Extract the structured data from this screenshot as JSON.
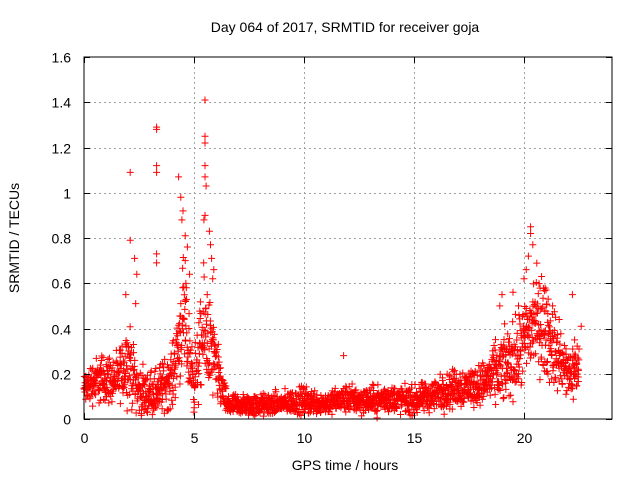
{
  "chart_data": {
    "type": "scatter",
    "title": "Day 064 of 2017, SRMTID for receiver goja",
    "xlabel": "GPS time / hours",
    "ylabel": "SRMTID / TECUs",
    "xlim": [
      0,
      24
    ],
    "ylim": [
      0,
      1.6
    ],
    "xticks": [
      0,
      5,
      10,
      15,
      20
    ],
    "xtick_labels": [
      "0",
      "5",
      "10",
      "15",
      "20"
    ],
    "yticks": [
      0,
      0.2,
      0.4,
      0.6,
      0.8,
      1.0,
      1.2,
      1.4,
      1.6
    ],
    "ytick_labels": [
      "0",
      "0.2",
      "0.4",
      "0.6",
      "0.8",
      "1",
      "1.2",
      "1.4",
      "1.6"
    ],
    "grid": true,
    "marker": "+",
    "series_color": "#ff0000",
    "series": [
      {
        "name": "SRMTID",
        "envelope": [
          {
            "x": 0.0,
            "mean": 0.13,
            "spread": 0.06
          },
          {
            "x": 0.5,
            "mean": 0.17,
            "spread": 0.08
          },
          {
            "x": 1.0,
            "mean": 0.18,
            "spread": 0.09
          },
          {
            "x": 1.5,
            "mean": 0.17,
            "spread": 0.08
          },
          {
            "x": 2.0,
            "mean": 0.26,
            "spread": 0.14
          },
          {
            "x": 2.5,
            "mean": 0.12,
            "spread": 0.08
          },
          {
            "x": 3.0,
            "mean": 0.11,
            "spread": 0.08
          },
          {
            "x": 3.5,
            "mean": 0.14,
            "spread": 0.09
          },
          {
            "x": 4.0,
            "mean": 0.18,
            "spread": 0.1
          },
          {
            "x": 4.5,
            "mean": 0.45,
            "spread": 0.2
          },
          {
            "x": 5.0,
            "mean": 0.16,
            "spread": 0.1
          },
          {
            "x": 5.5,
            "mean": 0.4,
            "spread": 0.22
          },
          {
            "x": 6.0,
            "mean": 0.22,
            "spread": 0.12
          },
          {
            "x": 6.5,
            "mean": 0.06,
            "spread": 0.04
          },
          {
            "x": 7.0,
            "mean": 0.06,
            "spread": 0.04
          },
          {
            "x": 8.0,
            "mean": 0.06,
            "spread": 0.04
          },
          {
            "x": 9.0,
            "mean": 0.07,
            "spread": 0.04
          },
          {
            "x": 10.0,
            "mean": 0.08,
            "spread": 0.05
          },
          {
            "x": 11.0,
            "mean": 0.07,
            "spread": 0.04
          },
          {
            "x": 12.0,
            "mean": 0.09,
            "spread": 0.05
          },
          {
            "x": 13.0,
            "mean": 0.08,
            "spread": 0.05
          },
          {
            "x": 14.0,
            "mean": 0.09,
            "spread": 0.05
          },
          {
            "x": 15.0,
            "mean": 0.08,
            "spread": 0.05
          },
          {
            "x": 16.0,
            "mean": 0.11,
            "spread": 0.06
          },
          {
            "x": 17.0,
            "mean": 0.14,
            "spread": 0.07
          },
          {
            "x": 18.0,
            "mean": 0.15,
            "spread": 0.07
          },
          {
            "x": 19.0,
            "mean": 0.22,
            "spread": 0.12
          },
          {
            "x": 19.5,
            "mean": 0.26,
            "spread": 0.13
          },
          {
            "x": 20.0,
            "mean": 0.33,
            "spread": 0.15
          },
          {
            "x": 20.5,
            "mean": 0.45,
            "spread": 0.18
          },
          {
            "x": 21.0,
            "mean": 0.38,
            "spread": 0.16
          },
          {
            "x": 21.5,
            "mean": 0.28,
            "spread": 0.12
          },
          {
            "x": 22.0,
            "mean": 0.2,
            "spread": 0.1
          },
          {
            "x": 22.5,
            "mean": 0.23,
            "spread": 0.1
          }
        ],
        "peaks": [
          {
            "x": 2.1,
            "y": 1.09
          },
          {
            "x": 2.1,
            "y": 0.79
          },
          {
            "x": 2.3,
            "y": 0.71
          },
          {
            "x": 2.4,
            "y": 0.64
          },
          {
            "x": 2.35,
            "y": 0.51
          },
          {
            "x": 1.9,
            "y": 0.55
          },
          {
            "x": 3.3,
            "y": 1.29
          },
          {
            "x": 3.3,
            "y": 1.28
          },
          {
            "x": 3.3,
            "y": 1.12
          },
          {
            "x": 3.3,
            "y": 1.09
          },
          {
            "x": 3.3,
            "y": 0.73
          },
          {
            "x": 3.3,
            "y": 0.69
          },
          {
            "x": 4.3,
            "y": 1.07
          },
          {
            "x": 4.4,
            "y": 0.98
          },
          {
            "x": 4.5,
            "y": 0.92
          },
          {
            "x": 4.45,
            "y": 0.88
          },
          {
            "x": 4.6,
            "y": 0.81
          },
          {
            "x": 4.7,
            "y": 0.76
          },
          {
            "x": 4.6,
            "y": 0.7
          },
          {
            "x": 4.8,
            "y": 0.64
          },
          {
            "x": 4.65,
            "y": 0.58
          },
          {
            "x": 5.5,
            "y": 1.41
          },
          {
            "x": 5.5,
            "y": 1.25
          },
          {
            "x": 5.5,
            "y": 1.22
          },
          {
            "x": 5.5,
            "y": 1.12
          },
          {
            "x": 5.5,
            "y": 1.07
          },
          {
            "x": 5.55,
            "y": 1.03
          },
          {
            "x": 5.5,
            "y": 0.9
          },
          {
            "x": 5.45,
            "y": 0.88
          },
          {
            "x": 5.7,
            "y": 0.83
          },
          {
            "x": 5.75,
            "y": 0.77
          },
          {
            "x": 5.8,
            "y": 0.71
          },
          {
            "x": 5.9,
            "y": 0.66
          },
          {
            "x": 5.85,
            "y": 0.62
          },
          {
            "x": 5.6,
            "y": 0.55
          },
          {
            "x": 11.8,
            "y": 0.28
          },
          {
            "x": 20.3,
            "y": 0.85
          },
          {
            "x": 20.3,
            "y": 0.82
          },
          {
            "x": 20.4,
            "y": 0.77
          },
          {
            "x": 20.2,
            "y": 0.72
          },
          {
            "x": 20.1,
            "y": 0.66
          },
          {
            "x": 20.0,
            "y": 0.62
          },
          {
            "x": 20.8,
            "y": 0.63
          },
          {
            "x": 21.0,
            "y": 0.57
          },
          {
            "x": 21.1,
            "y": 0.53
          },
          {
            "x": 22.2,
            "y": 0.55
          },
          {
            "x": 22.6,
            "y": 0.41
          },
          {
            "x": 22.3,
            "y": 0.35
          },
          {
            "x": 19.0,
            "y": 0.55
          },
          {
            "x": 18.9,
            "y": 0.5
          },
          {
            "x": 19.5,
            "y": 0.56
          },
          {
            "x": 21.3,
            "y": 0.5
          },
          {
            "x": 21.6,
            "y": 0.44
          }
        ]
      }
    ]
  }
}
